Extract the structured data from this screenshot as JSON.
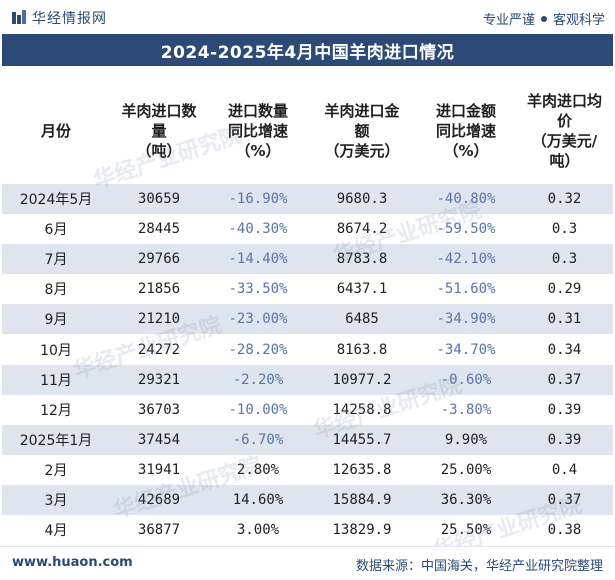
{
  "header": {
    "brand": "华经情报网",
    "tagline_left": "专业严谨",
    "tagline_right": "客观科学"
  },
  "title": "2024-2025年4月中国羊肉进口情况",
  "columns": [
    "月份",
    "羊肉进口数量（吨）",
    "进口数量同比增速（%）",
    "羊肉进口金额（万美元）",
    "进口金额同比增速（%）",
    "羊肉进口均价（万美元/吨）"
  ],
  "column_lines": [
    [
      "月份"
    ],
    [
      "羊肉进口数",
      "量",
      "（吨）"
    ],
    [
      "进口数量",
      "同比增速",
      "（%）"
    ],
    [
      "羊肉进口金",
      "额",
      "（万美元）"
    ],
    [
      "进口金额",
      "同比增速",
      "（%）"
    ],
    [
      "羊肉进口均",
      "价",
      "（万美元/",
      "吨）"
    ]
  ],
  "rows": [
    {
      "month": "2024年5月",
      "qty": "30659",
      "qty_yoy": "-16.90%",
      "amount": "9680.3",
      "amount_yoy": "-40.80%",
      "price": "0.32"
    },
    {
      "month": "6月",
      "qty": "28445",
      "qty_yoy": "-40.30%",
      "amount": "8674.2",
      "amount_yoy": "-59.50%",
      "price": "0.3"
    },
    {
      "month": "7月",
      "qty": "29766",
      "qty_yoy": "-14.40%",
      "amount": "8783.8",
      "amount_yoy": "-42.10%",
      "price": "0.3"
    },
    {
      "month": "8月",
      "qty": "21856",
      "qty_yoy": "-33.50%",
      "amount": "6437.1",
      "amount_yoy": "-51.60%",
      "price": "0.29"
    },
    {
      "month": "9月",
      "qty": "21210",
      "qty_yoy": "-23.00%",
      "amount": "6485",
      "amount_yoy": "-34.90%",
      "price": "0.31"
    },
    {
      "month": "10月",
      "qty": "24272",
      "qty_yoy": "-28.20%",
      "amount": "8163.8",
      "amount_yoy": "-34.70%",
      "price": "0.34"
    },
    {
      "month": "11月",
      "qty": "29321",
      "qty_yoy": "-2.20%",
      "amount": "10977.2",
      "amount_yoy": "-0.60%",
      "price": "0.37"
    },
    {
      "month": "12月",
      "qty": "36703",
      "qty_yoy": "-10.00%",
      "amount": "14258.8",
      "amount_yoy": "-3.80%",
      "price": "0.39"
    },
    {
      "month": "2025年1月",
      "qty": "37454",
      "qty_yoy": "-6.70%",
      "amount": "14455.7",
      "amount_yoy": "9.90%",
      "price": "0.39"
    },
    {
      "month": "2月",
      "qty": "31941",
      "qty_yoy": "2.80%",
      "amount": "12635.8",
      "amount_yoy": "25.00%",
      "price": "0.4"
    },
    {
      "month": "3月",
      "qty": "42689",
      "qty_yoy": "14.60%",
      "amount": "15884.9",
      "amount_yoy": "36.30%",
      "price": "0.37"
    },
    {
      "month": "4月",
      "qty": "36877",
      "qty_yoy": "3.00%",
      "amount": "13829.9",
      "amount_yoy": "25.50%",
      "price": "0.38"
    }
  ],
  "watermark": "华经产业研究院",
  "footer": {
    "site": "www.huaon.com",
    "source": "数据来源：中国海关，华经产业研究院整理"
  },
  "colors": {
    "brand": "#2b4a73",
    "title_bg": "#2d4a76",
    "row_alt": "#dfe5ee",
    "negative": "#5a74a8"
  },
  "icons": {
    "logo": "huajing-logo-icon",
    "separator": "dot-icon"
  }
}
